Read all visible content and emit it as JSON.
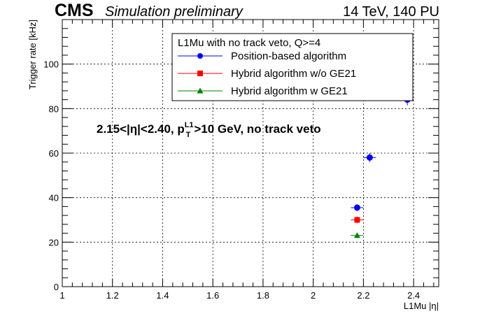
{
  "header": {
    "experiment": "CMS",
    "label": "Simulation preliminary",
    "conditions": "14 TeV, 140 PU"
  },
  "annotation": {
    "prefix": "2.15<|η|<2.40, p",
    "sup": "L1",
    "sub": "T",
    "suffix": ">10 GeV, no track veto"
  },
  "legend": {
    "title": "L1Mu with no track veto, Q>=4",
    "placement": "top-right",
    "entries": [
      {
        "label": "Position-based algorithm",
        "color": "#0000ff",
        "marker": "circle"
      },
      {
        "label": "Hybrid algorithm w/o GE21",
        "color": "#ff0000",
        "marker": "square"
      },
      {
        "label": "Hybrid algorithm w GE21",
        "color": "#008000",
        "marker": "triangle"
      }
    ]
  },
  "chart_data": {
    "type": "scatter",
    "xlabel": "L1Mu |η|",
    "ylabel": "Trigger rate [kHz]",
    "xlim": [
      1.0,
      2.5
    ],
    "ylim": [
      0,
      120
    ],
    "grid": true,
    "xticks": [
      1,
      1.2,
      1.4,
      1.6,
      1.8,
      2,
      2.2,
      2.4
    ],
    "xtick_labels": [
      "1",
      "1.2",
      "1.4",
      "1.6",
      "1.8",
      "2",
      "2.2",
      "2.4"
    ],
    "yticks": [
      0,
      20,
      40,
      60,
      80,
      100
    ],
    "ytick_labels": [
      "0",
      "20",
      "40",
      "60",
      "80",
      "100"
    ],
    "series": [
      {
        "name": "Position-based algorithm",
        "color": "#0000ff",
        "marker": "circle",
        "points": [
          {
            "x": 2.175,
            "y": 35.5,
            "xerr": 0.025,
            "yerr": 1.5
          },
          {
            "x": 2.225,
            "y": 58.0,
            "xerr": 0.025,
            "yerr": 2.0
          },
          {
            "x": 2.375,
            "y": 84.0,
            "xerr": 0.025,
            "yerr": 2.5
          }
        ]
      },
      {
        "name": "Hybrid algorithm w/o GE21",
        "color": "#ff0000",
        "marker": "square",
        "points": [
          {
            "x": 2.175,
            "y": 30.0,
            "xerr": 0.025,
            "yerr": 1.5
          }
        ]
      },
      {
        "name": "Hybrid algorithm w GE21",
        "color": "#008000",
        "marker": "triangle",
        "points": [
          {
            "x": 2.175,
            "y": 23.0,
            "xerr": 0.025,
            "yerr": 1.2
          }
        ]
      }
    ]
  }
}
